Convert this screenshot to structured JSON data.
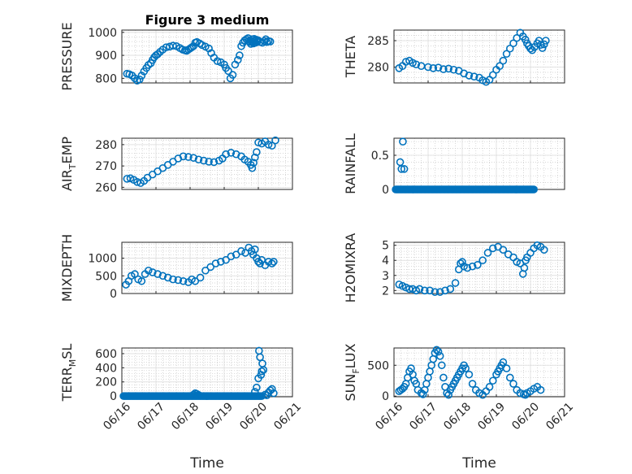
{
  "colors": {
    "marker": "#0072bd",
    "axis": "#262626",
    "grid": "#dcdcdc"
  },
  "chart_data": [
    {
      "type": "scatter",
      "title": "Figure 3 medium",
      "ylabel": "PRESSURE",
      "ylim": [
        780,
        1010
      ],
      "yticks": [
        800,
        900,
        1000
      ],
      "xlim": [
        "06/16",
        "06/21"
      ],
      "xticks": [
        "06/16",
        "06/17",
        "06/18",
        "06/19",
        "06/20",
        "06/21"
      ],
      "x": [
        "06/16",
        "06/16",
        "06/16",
        "06/16",
        "06/16",
        "06/16",
        "06/16",
        "06/16",
        "06/16",
        "06/16",
        "06/16",
        "06/16",
        "06/16",
        "06/16",
        "06/17",
        "06/17",
        "06/17",
        "06/17",
        "06/17",
        "06/17",
        "06/17",
        "06/17",
        "06/17",
        "06/17",
        "06/17",
        "06/17",
        "06/17",
        "06/17",
        "06/17",
        "06/17",
        "06/18",
        "06/18",
        "06/18",
        "06/18",
        "06/18",
        "06/18",
        "06/18",
        "06/18",
        "06/18",
        "06/18",
        "06/18",
        "06/18",
        "06/18",
        "06/19",
        "06/19",
        "06/19",
        "06/19",
        "06/19",
        "06/19",
        "06/19",
        "06/19",
        "06/19",
        "06/19",
        "06/19",
        "06/19",
        "06/19",
        "06/19",
        "06/19",
        "06/19",
        "06/19",
        "06/19",
        "06/19",
        "06/19",
        "06/19",
        "06/20",
        "06/20",
        "06/20",
        "06/20",
        "06/20",
        "06/20",
        "06/20",
        "06/20"
      ],
      "xd": [
        0.15,
        0.22,
        0.3,
        0.38,
        0.45,
        0.52,
        0.58,
        0.65,
        0.72,
        0.78,
        0.85,
        0.9,
        0.95,
        1.0,
        1.05,
        1.12,
        1.2,
        1.3,
        1.4,
        1.5,
        1.6,
        1.7,
        1.78,
        1.85,
        1.9,
        1.95,
        2.0,
        2.05,
        2.1,
        2.15,
        2.2,
        2.28,
        2.35,
        2.45,
        2.55,
        2.62,
        2.7,
        2.8,
        2.9,
        3.0,
        3.05,
        3.12,
        3.18,
        3.25,
        3.32,
        3.4,
        3.45,
        3.5,
        3.55,
        3.6,
        3.65,
        3.7,
        3.72,
        3.75,
        3.78,
        3.8,
        3.82,
        3.84,
        3.86,
        3.88,
        3.9,
        3.92,
        3.95,
        3.97,
        4.0,
        4.05,
        4.12,
        4.18,
        4.22,
        4.25,
        4.3,
        4.35
      ],
      "y": [
        820,
        818,
        812,
        800,
        790,
        795,
        812,
        830,
        845,
        858,
        866,
        880,
        892,
        900,
        905,
        915,
        925,
        935,
        938,
        942,
        940,
        932,
        925,
        922,
        920,
        925,
        930,
        935,
        940,
        955,
        958,
        952,
        945,
        938,
        930,
        910,
        890,
        875,
        870,
        860,
        845,
        832,
        800,
        815,
        860,
        880,
        900,
        940,
        955,
        965,
        970,
        975,
        962,
        958,
        950,
        962,
        970,
        958,
        952,
        972,
        965,
        955,
        968,
        960,
        965,
        958,
        955,
        962,
        970,
        958,
        962,
        960
      ]
    },
    {
      "type": "scatter",
      "title": "",
      "ylabel": "THETA",
      "ylim": [
        277,
        287
      ],
      "yticks": [
        280,
        285
      ],
      "xlim": [
        "06/16",
        "06/21"
      ],
      "xticks": [
        "06/16",
        "06/17",
        "06/18",
        "06/19",
        "06/20",
        "06/21"
      ],
      "x": [
        "06/16",
        "06/16",
        "06/16",
        "06/16",
        "06/16",
        "06/16",
        "06/16",
        "06/17",
        "06/17",
        "06/17",
        "06/17",
        "06/17",
        "06/17",
        "06/17",
        "06/17",
        "06/18",
        "06/18",
        "06/18",
        "06/18",
        "06/18",
        "06/18",
        "06/18",
        "06/18",
        "06/18",
        "06/19",
        "06/19",
        "06/19",
        "06/19",
        "06/19",
        "06/19",
        "06/19",
        "06/19",
        "06/19",
        "06/19",
        "06/19",
        "06/20",
        "06/20",
        "06/20",
        "06/20",
        "06/20",
        "06/20",
        "06/20",
        "06/20"
      ],
      "xd": [
        0.15,
        0.25,
        0.35,
        0.45,
        0.55,
        0.65,
        0.8,
        1.0,
        1.15,
        1.3,
        1.45,
        1.6,
        1.75,
        1.9,
        2.05,
        2.2,
        2.35,
        2.5,
        2.6,
        2.7,
        2.8,
        2.9,
        3.0,
        3.1,
        3.2,
        3.3,
        3.4,
        3.5,
        3.6,
        3.7,
        3.78,
        3.85,
        3.9,
        3.95,
        4.0,
        4.05,
        4.12,
        4.2,
        4.25,
        4.3,
        4.35,
        4.4,
        4.45
      ],
      "y": [
        279.8,
        280.2,
        281.0,
        281.2,
        280.8,
        280.5,
        280.2,
        280.0,
        279.8,
        279.9,
        279.6,
        279.7,
        279.5,
        279.3,
        278.8,
        278.4,
        278.2,
        278.0,
        277.5,
        277.2,
        277.6,
        278.5,
        279.5,
        280.2,
        281.2,
        282.5,
        283.5,
        284.5,
        285.5,
        286.5,
        285.8,
        285.2,
        284.5,
        284.0,
        283.5,
        283.2,
        283.8,
        284.5,
        285.0,
        284.2,
        283.6,
        284.3,
        285.0
      ]
    },
    {
      "type": "scatter",
      "title": "",
      "ylabel": "AIR_TEMP",
      "ylim": [
        259,
        283
      ],
      "yticks": [
        260,
        270,
        280
      ],
      "xlim": [
        "06/16",
        "06/21"
      ],
      "xticks": [
        "06/16",
        "06/17",
        "06/18",
        "06/19",
        "06/20",
        "06/21"
      ],
      "x": [
        "06/16",
        "06/16",
        "06/16",
        "06/16",
        "06/16",
        "06/16",
        "06/16",
        "06/16",
        "06/17",
        "06/17",
        "06/17",
        "06/17",
        "06/17",
        "06/17",
        "06/17",
        "06/18",
        "06/18",
        "06/18",
        "06/18",
        "06/18",
        "06/18",
        "06/18",
        "06/18",
        "06/18",
        "06/19",
        "06/19",
        "06/19",
        "06/19",
        "06/19",
        "06/19",
        "06/19",
        "06/19",
        "06/19",
        "06/20",
        "06/20",
        "06/20",
        "06/20",
        "06/20",
        "06/20"
      ],
      "xd": [
        0.15,
        0.25,
        0.35,
        0.45,
        0.55,
        0.65,
        0.75,
        0.9,
        1.05,
        1.2,
        1.35,
        1.5,
        1.65,
        1.8,
        1.95,
        2.1,
        2.25,
        2.4,
        2.55,
        2.7,
        2.85,
        2.95,
        3.05,
        3.2,
        3.35,
        3.5,
        3.6,
        3.7,
        3.78,
        3.82,
        3.86,
        3.9,
        3.95,
        4.0,
        4.1,
        4.2,
        4.3,
        4.4,
        4.5
      ],
      "y": [
        264.0,
        264.2,
        263.5,
        262.5,
        262.0,
        263.0,
        264.5,
        266.0,
        267.5,
        269.0,
        270.5,
        272.0,
        273.5,
        274.5,
        274.2,
        273.8,
        273.0,
        272.5,
        272.0,
        271.8,
        272.5,
        273.5,
        275.5,
        276.2,
        275.5,
        274.5,
        273.0,
        272.0,
        270.5,
        269.0,
        271.5,
        274.0,
        276.5,
        281.0,
        280.5,
        281.5,
        280.0,
        279.5,
        282.0
      ]
    },
    {
      "type": "scatter",
      "title": "",
      "ylabel": "RAINFALL",
      "ylim": [
        0,
        0.75
      ],
      "yticks": [
        0,
        0.5
      ],
      "xlim": [
        "06/16",
        "06/21"
      ],
      "xticks": [
        "06/16",
        "06/17",
        "06/18",
        "06/19",
        "06/20",
        "06/21"
      ],
      "x": [
        "06/16",
        "06/16",
        "06/16",
        "06/16"
      ],
      "xd": [
        0.18,
        0.22,
        0.26,
        0.3
      ],
      "y": [
        0.4,
        0.3,
        0.7,
        0.3
      ],
      "baseline": {
        "x_from": "06/16",
        "x_to": "06/20",
        "xd_from": 0.05,
        "xd_to": 4.1,
        "y": 0
      }
    },
    {
      "type": "scatter",
      "title": "",
      "ylabel": "MIXDEPTH",
      "ylim": [
        0,
        1450
      ],
      "yticks": [
        0,
        500,
        1000
      ],
      "xlim": [
        "06/16",
        "06/21"
      ],
      "xticks": [
        "06/16",
        "06/17",
        "06/18",
        "06/19",
        "06/20",
        "06/21"
      ],
      "x": [
        "06/16",
        "06/16",
        "06/16",
        "06/16",
        "06/16",
        "06/16",
        "06/16",
        "06/16",
        "06/16",
        "06/17",
        "06/17",
        "06/17",
        "06/17",
        "06/17",
        "06/17",
        "06/18",
        "06/18",
        "06/18",
        "06/18",
        "06/18",
        "06/18",
        "06/18",
        "06/18",
        "06/19",
        "06/19",
        "06/19",
        "06/19",
        "06/19",
        "06/19",
        "06/19",
        "06/19",
        "06/19",
        "06/19",
        "06/20",
        "06/20",
        "06/20",
        "06/20",
        "06/20",
        "06/20",
        "06/20"
      ],
      "xd": [
        0.12,
        0.2,
        0.28,
        0.38,
        0.48,
        0.58,
        0.68,
        0.78,
        0.9,
        1.05,
        1.2,
        1.35,
        1.5,
        1.65,
        1.8,
        1.95,
        2.05,
        2.15,
        2.3,
        2.45,
        2.6,
        2.75,
        2.9,
        3.05,
        3.2,
        3.35,
        3.5,
        3.62,
        3.72,
        3.8,
        3.85,
        3.9,
        3.95,
        4.0,
        4.05,
        4.1,
        4.2,
        4.3,
        4.4,
        4.45
      ],
      "y": [
        250,
        350,
        500,
        550,
        400,
        350,
        550,
        650,
        600,
        550,
        500,
        450,
        400,
        380,
        350,
        320,
        400,
        350,
        450,
        650,
        750,
        850,
        900,
        950,
        1050,
        1100,
        1200,
        1150,
        1300,
        1200,
        1100,
        1250,
        1000,
        900,
        850,
        950,
        800,
        900,
        850,
        900
      ]
    },
    {
      "type": "scatter",
      "title": "",
      "ylabel": "H2OMIXRA",
      "ylim": [
        1.8,
        5.2
      ],
      "yticks": [
        2,
        3,
        4,
        5
      ],
      "xlim": [
        "06/16",
        "06/21"
      ],
      "xticks": [
        "06/16",
        "06/17",
        "06/18",
        "06/19",
        "06/20",
        "06/21"
      ],
      "x": [
        "06/16",
        "06/16",
        "06/16",
        "06/16",
        "06/16",
        "06/16",
        "06/16",
        "06/16",
        "06/17",
        "06/17",
        "06/17",
        "06/17",
        "06/17",
        "06/18",
        "06/18",
        "06/18",
        "06/18",
        "06/18",
        "06/18",
        "06/18",
        "06/18",
        "06/18",
        "06/18",
        "06/19",
        "06/19",
        "06/19",
        "06/19",
        "06/19",
        "06/19",
        "06/19",
        "06/19",
        "06/19",
        "06/19",
        "06/20",
        "06/20",
        "06/20",
        "06/20",
        "06/20",
        "06/20"
      ],
      "xd": [
        0.15,
        0.25,
        0.35,
        0.45,
        0.55,
        0.65,
        0.75,
        0.9,
        1.05,
        1.2,
        1.35,
        1.5,
        1.65,
        1.8,
        1.9,
        1.95,
        2.0,
        2.05,
        2.15,
        2.3,
        2.45,
        2.6,
        2.75,
        2.9,
        3.05,
        3.2,
        3.35,
        3.5,
        3.6,
        3.7,
        3.78,
        3.82,
        3.86,
        3.9,
        4.0,
        4.1,
        4.2,
        4.3,
        4.4
      ],
      "y": [
        2.4,
        2.3,
        2.2,
        2.1,
        2.1,
        2.0,
        2.1,
        2.0,
        2.0,
        1.9,
        1.9,
        2.0,
        2.1,
        2.5,
        3.4,
        3.8,
        3.9,
        3.6,
        3.5,
        3.6,
        3.7,
        4.0,
        4.5,
        4.8,
        4.9,
        4.7,
        4.4,
        4.2,
        3.9,
        3.8,
        3.1,
        3.5,
        4.0,
        4.2,
        4.5,
        4.8,
        5.0,
        4.9,
        4.7
      ]
    },
    {
      "type": "scatter",
      "title": "",
      "ylabel": "TERR_MSL",
      "ylim": [
        -10,
        680
      ],
      "yticks": [
        0,
        200,
        400,
        600
      ],
      "xlim": [
        "06/16",
        "06/21"
      ],
      "xticks": [
        "06/16",
        "06/17",
        "06/18",
        "06/19",
        "06/20",
        "06/21"
      ],
      "x": [
        "06/18",
        "06/18",
        "06/18",
        "06/18",
        "06/19",
        "06/20",
        "06/20",
        "06/20",
        "06/20",
        "06/20",
        "06/20",
        "06/20",
        "06/20",
        "06/20",
        "06/20",
        "06/20",
        "06/20",
        "06/20",
        "06/20"
      ],
      "xd": [
        2.1,
        2.15,
        2.2,
        2.25,
        3.9,
        3.95,
        4.0,
        4.02,
        4.05,
        4.08,
        4.1,
        4.12,
        4.15,
        4.2,
        4.25,
        4.3,
        4.35,
        4.4,
        4.45
      ],
      "y": [
        20,
        40,
        30,
        15,
        60,
        120,
        250,
        640,
        550,
        300,
        350,
        460,
        370,
        20,
        10,
        50,
        80,
        100,
        40
      ],
      "baseline": {
        "x_from": "06/16",
        "x_to": "06/20",
        "xd_from": 0.05,
        "xd_to": 4.1,
        "y": 0
      }
    },
    {
      "type": "scatter",
      "title": "",
      "ylabel": "SUN_FLUX",
      "ylim": [
        -10,
        780
      ],
      "yticks": [
        0,
        500
      ],
      "xlim": [
        "06/16",
        "06/21"
      ],
      "xticks": [
        "06/16",
        "06/17",
        "06/18",
        "06/19",
        "06/20",
        "06/21"
      ],
      "x": [
        "06/16",
        "06/16",
        "06/16",
        "06/16",
        "06/16",
        "06/16",
        "06/16",
        "06/16",
        "06/16",
        "06/16",
        "06/16",
        "06/16",
        "06/16",
        "06/17",
        "06/17",
        "06/17",
        "06/17",
        "06/17",
        "06/17",
        "06/17",
        "06/17",
        "06/17",
        "06/17",
        "06/17",
        "06/17",
        "06/17",
        "06/17",
        "06/17",
        "06/18",
        "06/18",
        "06/18",
        "06/18",
        "06/18",
        "06/18",
        "06/18",
        "06/18",
        "06/18",
        "06/18",
        "06/18",
        "06/18",
        "06/18",
        "06/18",
        "06/19",
        "06/19",
        "06/19",
        "06/19",
        "06/19",
        "06/19",
        "06/19",
        "06/19",
        "06/19",
        "06/19",
        "06/19",
        "06/19",
        "06/19",
        "06/19",
        "06/19",
        "06/20",
        "06/20",
        "06/20",
        "06/20",
        "06/20",
        "06/20",
        "06/20"
      ],
      "xd": [
        0.15,
        0.2,
        0.25,
        0.3,
        0.35,
        0.4,
        0.45,
        0.5,
        0.55,
        0.6,
        0.65,
        0.7,
        0.8,
        0.85,
        0.9,
        0.95,
        1.0,
        1.05,
        1.1,
        1.15,
        1.2,
        1.25,
        1.3,
        1.35,
        1.4,
        1.45,
        1.5,
        1.55,
        1.6,
        1.65,
        1.7,
        1.75,
        1.8,
        1.85,
        1.9,
        1.95,
        2.0,
        2.05,
        2.1,
        2.2,
        2.3,
        2.4,
        2.5,
        2.6,
        2.7,
        2.8,
        2.9,
        3.0,
        3.05,
        3.1,
        3.15,
        3.2,
        3.3,
        3.4,
        3.5,
        3.6,
        3.7,
        3.8,
        3.85,
        3.9,
        4.0,
        4.1,
        4.2,
        4.3
      ],
      "y": [
        80,
        100,
        120,
        150,
        200,
        300,
        400,
        450,
        350,
        250,
        200,
        100,
        50,
        30,
        100,
        200,
        300,
        400,
        500,
        600,
        700,
        750,
        720,
        650,
        500,
        300,
        150,
        50,
        20,
        100,
        150,
        200,
        250,
        300,
        350,
        400,
        450,
        500,
        450,
        350,
        200,
        100,
        50,
        20,
        80,
        150,
        250,
        350,
        400,
        450,
        500,
        550,
        450,
        300,
        200,
        100,
        50,
        30,
        20,
        50,
        80,
        120,
        150,
        100
      ]
    }
  ],
  "xlabel": "Time"
}
